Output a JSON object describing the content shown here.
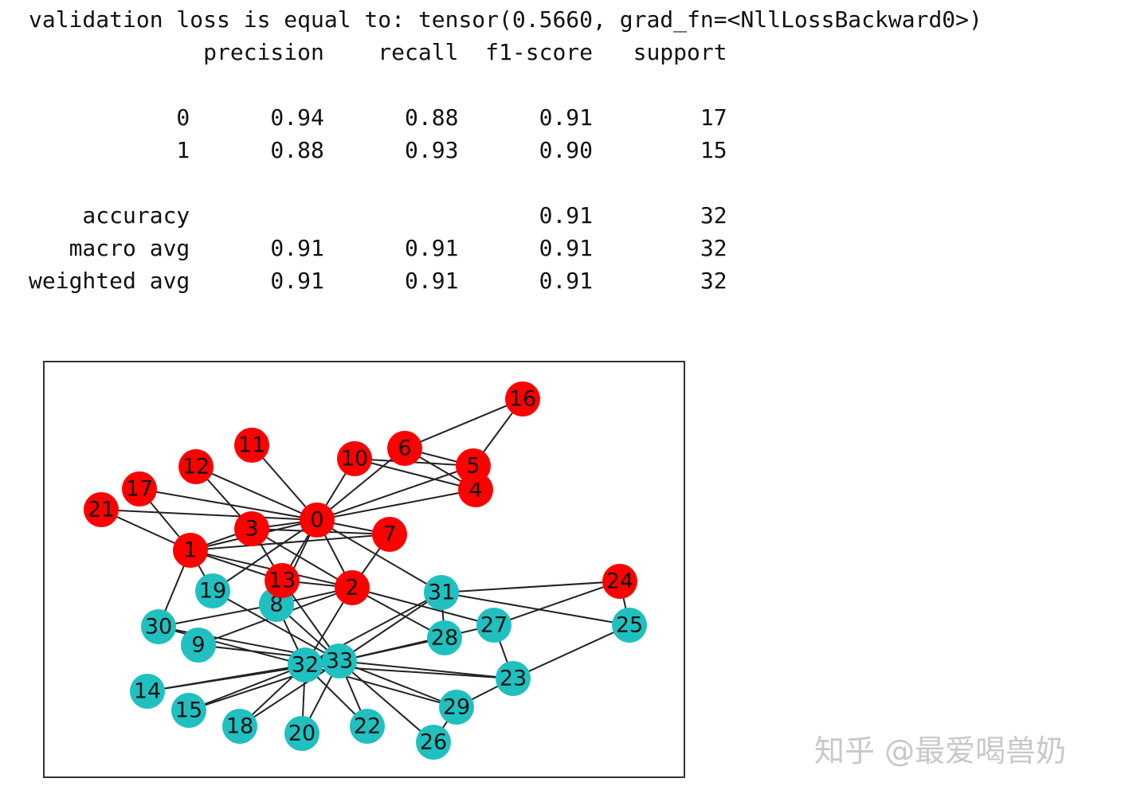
{
  "console": {
    "loss_line": "validation loss is equal to: tensor(0.5660, grad_fn=<NllLossBackward0>)"
  },
  "report": {
    "header": [
      "precision",
      "recall",
      "f1-score",
      "support"
    ],
    "rows": [
      {
        "label": "0",
        "values": [
          "0.94",
          "0.88",
          "0.91",
          "17"
        ]
      },
      {
        "label": "1",
        "values": [
          "0.88",
          "0.93",
          "0.90",
          "15"
        ]
      },
      {
        "label": "accuracy",
        "values": [
          "",
          "",
          "0.91",
          "32"
        ]
      },
      {
        "label": "macro avg",
        "values": [
          "0.91",
          "0.91",
          "0.91",
          "32"
        ]
      },
      {
        "label": "weighted avg",
        "values": [
          "0.91",
          "0.91",
          "0.91",
          "32"
        ]
      }
    ]
  },
  "graph": {
    "colors": {
      "class_0": "#ff0000",
      "class_1": "#20c0c0",
      "edge": "#222222"
    },
    "class_0_nodes": [
      "0",
      "1",
      "2",
      "3",
      "4",
      "5",
      "6",
      "7",
      "10",
      "11",
      "12",
      "13",
      "16",
      "17",
      "21",
      "24"
    ],
    "class_1_nodes": [
      "8",
      "9",
      "14",
      "15",
      "18",
      "19",
      "20",
      "22",
      "23",
      "25",
      "26",
      "27",
      "28",
      "29",
      "30",
      "31",
      "32",
      "33"
    ],
    "edges": [
      [
        "0",
        "1"
      ],
      [
        "0",
        "2"
      ],
      [
        "0",
        "3"
      ],
      [
        "0",
        "4"
      ],
      [
        "0",
        "5"
      ],
      [
        "0",
        "6"
      ],
      [
        "0",
        "7"
      ],
      [
        "0",
        "8"
      ],
      [
        "0",
        "10"
      ],
      [
        "0",
        "11"
      ],
      [
        "0",
        "12"
      ],
      [
        "0",
        "13"
      ],
      [
        "0",
        "17"
      ],
      [
        "0",
        "19"
      ],
      [
        "0",
        "21"
      ],
      [
        "0",
        "31"
      ],
      [
        "1",
        "2"
      ],
      [
        "1",
        "3"
      ],
      [
        "1",
        "7"
      ],
      [
        "1",
        "13"
      ],
      [
        "1",
        "17"
      ],
      [
        "1",
        "19"
      ],
      [
        "1",
        "21"
      ],
      [
        "1",
        "30"
      ],
      [
        "2",
        "3"
      ],
      [
        "2",
        "7"
      ],
      [
        "2",
        "8"
      ],
      [
        "2",
        "9"
      ],
      [
        "2",
        "13"
      ],
      [
        "2",
        "27"
      ],
      [
        "2",
        "28"
      ],
      [
        "2",
        "32"
      ],
      [
        "3",
        "7"
      ],
      [
        "3",
        "12"
      ],
      [
        "3",
        "13"
      ],
      [
        "4",
        "6"
      ],
      [
        "4",
        "10"
      ],
      [
        "5",
        "6"
      ],
      [
        "5",
        "10"
      ],
      [
        "5",
        "16"
      ],
      [
        "6",
        "16"
      ],
      [
        "8",
        "30"
      ],
      [
        "8",
        "32"
      ],
      [
        "8",
        "33"
      ],
      [
        "9",
        "33"
      ],
      [
        "13",
        "33"
      ],
      [
        "14",
        "32"
      ],
      [
        "14",
        "33"
      ],
      [
        "15",
        "32"
      ],
      [
        "15",
        "33"
      ],
      [
        "18",
        "32"
      ],
      [
        "18",
        "33"
      ],
      [
        "19",
        "33"
      ],
      [
        "20",
        "32"
      ],
      [
        "20",
        "33"
      ],
      [
        "22",
        "32"
      ],
      [
        "22",
        "33"
      ],
      [
        "23",
        "25"
      ],
      [
        "23",
        "27"
      ],
      [
        "23",
        "29"
      ],
      [
        "23",
        "32"
      ],
      [
        "23",
        "33"
      ],
      [
        "24",
        "25"
      ],
      [
        "24",
        "27"
      ],
      [
        "24",
        "31"
      ],
      [
        "25",
        "31"
      ],
      [
        "26",
        "29"
      ],
      [
        "26",
        "33"
      ],
      [
        "27",
        "33"
      ],
      [
        "28",
        "31"
      ],
      [
        "28",
        "33"
      ],
      [
        "29",
        "32"
      ],
      [
        "29",
        "33"
      ],
      [
        "30",
        "32"
      ],
      [
        "30",
        "33"
      ],
      [
        "31",
        "32"
      ],
      [
        "31",
        "33"
      ],
      [
        "32",
        "33"
      ]
    ]
  },
  "watermark": "知乎 @最爱喝兽奶"
}
